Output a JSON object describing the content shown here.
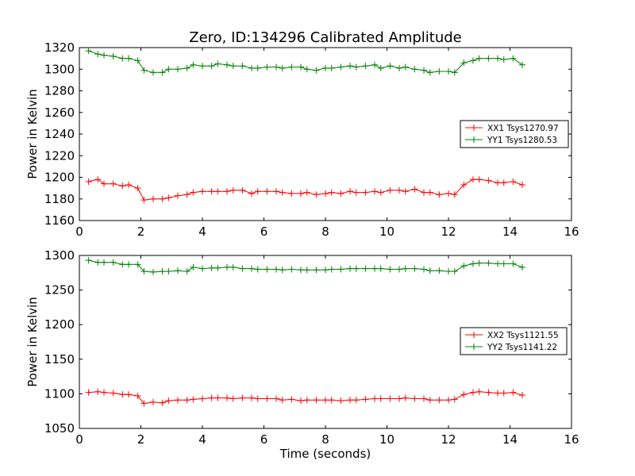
{
  "title": "Zero, ID:134296 Calibrated Amplitude",
  "xlabel": "Time (seconds)",
  "colors": {
    "red": "#ff0000",
    "green": "#008000"
  },
  "chart_data": [
    {
      "type": "line",
      "ylabel": "Power in Kelvin",
      "xlim": [
        0,
        16
      ],
      "ylim": [
        1160,
        1320
      ],
      "xticks": [
        "0",
        "2",
        "4",
        "6",
        "8",
        "10",
        "12",
        "14",
        "16"
      ],
      "yticks": [
        "1160",
        "1180",
        "1200",
        "1220",
        "1240",
        "1260",
        "1280",
        "1300",
        "1320"
      ],
      "legend_position": "center-right",
      "x": [
        0.3,
        0.6,
        0.8,
        1.1,
        1.4,
        1.6,
        1.9,
        2.1,
        2.4,
        2.7,
        2.9,
        3.2,
        3.5,
        3.7,
        4.0,
        4.3,
        4.5,
        4.8,
        5.0,
        5.3,
        5.6,
        5.8,
        6.1,
        6.4,
        6.6,
        6.9,
        7.2,
        7.4,
        7.7,
        8.0,
        8.2,
        8.5,
        8.8,
        9.0,
        9.3,
        9.6,
        9.8,
        10.1,
        10.4,
        10.6,
        10.9,
        11.2,
        11.4,
        11.7,
        12.0,
        12.2,
        12.5,
        12.8,
        13.0,
        13.3,
        13.6,
        13.8,
        14.1,
        14.4
      ],
      "series": [
        {
          "name": "XX1 Tsys1270.97",
          "color": "#ff0000",
          "values": [
            1196,
            1198,
            1194,
            1194,
            1192,
            1193,
            1190,
            1179,
            1180,
            1180,
            1181,
            1183,
            1184,
            1186,
            1187,
            1187,
            1187,
            1187,
            1188,
            1188,
            1185,
            1187,
            1187,
            1187,
            1186,
            1185,
            1185,
            1186,
            1184,
            1185,
            1186,
            1185,
            1187,
            1186,
            1186,
            1187,
            1186,
            1188,
            1188,
            1187,
            1189,
            1186,
            1186,
            1184,
            1185,
            1184,
            1193,
            1198,
            1198,
            1197,
            1195,
            1195,
            1196,
            1193
          ]
        },
        {
          "name": "YY1 Tsys1280.53",
          "color": "#008000",
          "values": [
            1317,
            1314,
            1313,
            1312,
            1310,
            1310,
            1308,
            1299,
            1297,
            1297,
            1300,
            1300,
            1301,
            1304,
            1303,
            1303,
            1305,
            1304,
            1303,
            1303,
            1301,
            1301,
            1302,
            1302,
            1301,
            1302,
            1302,
            1300,
            1299,
            1301,
            1301,
            1302,
            1303,
            1302,
            1303,
            1304,
            1301,
            1303,
            1301,
            1302,
            1300,
            1299,
            1297,
            1298,
            1298,
            1297,
            1306,
            1308,
            1310,
            1310,
            1310,
            1309,
            1310,
            1304
          ]
        }
      ]
    },
    {
      "type": "line",
      "ylabel": "Power in Kelvin",
      "xlabel": "Time (seconds)",
      "xlim": [
        0,
        16
      ],
      "ylim": [
        1050,
        1300
      ],
      "xticks": [
        "0",
        "2",
        "4",
        "6",
        "8",
        "10",
        "12",
        "14",
        "16"
      ],
      "yticks": [
        "1050",
        "1100",
        "1150",
        "1200",
        "1250",
        "1300"
      ],
      "legend_position": "center-right",
      "x": [
        0.3,
        0.6,
        0.8,
        1.1,
        1.4,
        1.6,
        1.9,
        2.1,
        2.4,
        2.7,
        2.9,
        3.2,
        3.5,
        3.7,
        4.0,
        4.3,
        4.5,
        4.8,
        5.0,
        5.3,
        5.6,
        5.8,
        6.1,
        6.4,
        6.6,
        6.9,
        7.2,
        7.4,
        7.7,
        8.0,
        8.2,
        8.5,
        8.8,
        9.0,
        9.3,
        9.6,
        9.8,
        10.1,
        10.4,
        10.6,
        10.9,
        11.2,
        11.4,
        11.7,
        12.0,
        12.2,
        12.5,
        12.8,
        13.0,
        13.3,
        13.6,
        13.8,
        14.1,
        14.4
      ],
      "series": [
        {
          "name": "XX2 Tsys1121.55",
          "color": "#ff0000",
          "values": [
            1102,
            1103,
            1102,
            1101,
            1099,
            1099,
            1097,
            1086,
            1088,
            1087,
            1090,
            1091,
            1091,
            1092,
            1093,
            1094,
            1094,
            1094,
            1093,
            1094,
            1094,
            1093,
            1093,
            1093,
            1091,
            1092,
            1090,
            1091,
            1091,
            1091,
            1091,
            1090,
            1091,
            1091,
            1092,
            1093,
            1093,
            1093,
            1093,
            1094,
            1093,
            1093,
            1091,
            1091,
            1091,
            1092,
            1099,
            1102,
            1103,
            1102,
            1101,
            1101,
            1102,
            1098
          ]
        },
        {
          "name": "YY2 Tsys1141.22",
          "color": "#008000",
          "values": [
            1293,
            1290,
            1290,
            1290,
            1287,
            1287,
            1287,
            1277,
            1276,
            1277,
            1277,
            1278,
            1277,
            1283,
            1281,
            1282,
            1282,
            1283,
            1283,
            1281,
            1281,
            1280,
            1280,
            1280,
            1279,
            1280,
            1279,
            1279,
            1279,
            1279,
            1280,
            1280,
            1281,
            1281,
            1281,
            1281,
            1281,
            1280,
            1280,
            1281,
            1281,
            1280,
            1278,
            1278,
            1277,
            1277,
            1285,
            1288,
            1289,
            1289,
            1288,
            1288,
            1288,
            1283
          ]
        }
      ]
    }
  ]
}
